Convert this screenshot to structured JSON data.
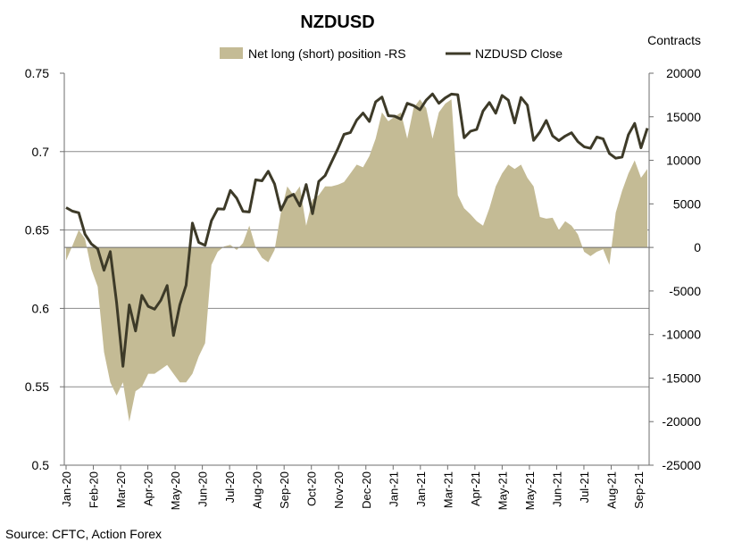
{
  "chart_data": {
    "type": "area+line",
    "title": "NZDUSD",
    "right_axis_title": "Contracts",
    "left_axis": {
      "min": 0.5,
      "max": 0.75,
      "ticks": [
        "0.75",
        "0.7",
        "0.65",
        "0.6",
        "0.55",
        "0.5"
      ],
      "tick_values": [
        0.75,
        0.7,
        0.65,
        0.6,
        0.55,
        0.5
      ]
    },
    "right_axis": {
      "min": -25000,
      "max": 20000,
      "ticks": [
        "20000",
        "15000",
        "10000",
        "5000",
        "0",
        "-5000",
        "-10000",
        "-15000",
        "-20000",
        "-25000"
      ],
      "tick_values": [
        20000,
        15000,
        10000,
        5000,
        0,
        -5000,
        -10000,
        -15000,
        -20000,
        -25000
      ]
    },
    "x_labels": [
      "Jan-20",
      "Feb-20",
      "Mar-20",
      "Apr-20",
      "May-20",
      "Jun-20",
      "Jul-20",
      "Aug-20",
      "Sep-20",
      "Oct-20",
      "Nov-20",
      "Dec-20",
      "Jan-21",
      "Jan-21",
      "Mar-21",
      "Apr-21",
      "May-21",
      "May-21",
      "Jun-21",
      "Jul-21",
      "Aug-21",
      "Sep-21"
    ],
    "gridlines": [
      0.7,
      0.65,
      0.6,
      0.55
    ],
    "legend": [
      {
        "name": "Net long (short) position -RS",
        "type": "area",
        "color": "#c4bb95"
      },
      {
        "name": "NZDUSD Close",
        "type": "line",
        "color": "#3d3a28"
      }
    ],
    "series": [
      {
        "name": "Net long (short) position -RS",
        "axis": "right",
        "values": [
          -1500,
          200,
          2000,
          1000,
          -2500,
          -4500,
          -12000,
          -15500,
          -17000,
          -15500,
          -20000,
          -16500,
          -16000,
          -14500,
          -14500,
          -14000,
          -13500,
          -14500,
          -15500,
          -15500,
          -14500,
          -12500,
          -11000,
          -2000,
          -500,
          100,
          300,
          -300,
          500,
          2500,
          0,
          -1200,
          -1700,
          -300,
          4000,
          7000,
          6000,
          7000,
          2500,
          5500,
          6000,
          7000,
          7000,
          7200,
          7500,
          8500,
          9500,
          9200,
          10500,
          12500,
          15500,
          14500,
          15000,
          15500,
          12500,
          16000,
          17000,
          16000,
          12500,
          15500,
          16500,
          17000,
          6000,
          4500,
          3800,
          3000,
          2500,
          4500,
          7000,
          8500,
          9500,
          9000,
          9500,
          8000,
          7000,
          3500,
          3300,
          3400,
          2000,
          3000,
          2500,
          1500,
          -500,
          -1000,
          -500,
          -200,
          -2000,
          4000,
          6500,
          8500,
          10000,
          8000,
          9000
        ]
      },
      {
        "name": "NZDUSD Close",
        "axis": "left",
        "values": [
          0.6643,
          0.662,
          0.661,
          0.6473,
          0.6411,
          0.638,
          0.6243,
          0.6362,
          0.6036,
          0.5631,
          0.6022,
          0.5856,
          0.6083,
          0.6013,
          0.5995,
          0.6052,
          0.6146,
          0.5827,
          0.6023,
          0.6148,
          0.6544,
          0.6421,
          0.6402,
          0.6559,
          0.6635,
          0.6633,
          0.6752,
          0.6703,
          0.6619,
          0.6615,
          0.682,
          0.6814,
          0.6875,
          0.6793,
          0.6627,
          0.6708,
          0.6728,
          0.6653,
          0.679,
          0.6604,
          0.681,
          0.6847,
          0.6932,
          0.7017,
          0.711,
          0.7122,
          0.7201,
          0.7246,
          0.7192,
          0.7317,
          0.7348,
          0.7229,
          0.7226,
          0.7207,
          0.7308,
          0.7293,
          0.7267,
          0.7328,
          0.7368,
          0.7308,
          0.7342,
          0.7367,
          0.7363,
          0.7088,
          0.713,
          0.7142,
          0.7259,
          0.7313,
          0.7245,
          0.7358,
          0.7328,
          0.7183,
          0.7345,
          0.7296,
          0.7072,
          0.7125,
          0.7199,
          0.71,
          0.707,
          0.7099,
          0.712,
          0.7064,
          0.7031,
          0.7021,
          0.7093,
          0.7081,
          0.6988,
          0.6958,
          0.6965,
          0.7108,
          0.718,
          0.7024,
          0.7149
        ]
      }
    ]
  },
  "footer": {
    "source": "Source: CFTC, Action Forex"
  }
}
